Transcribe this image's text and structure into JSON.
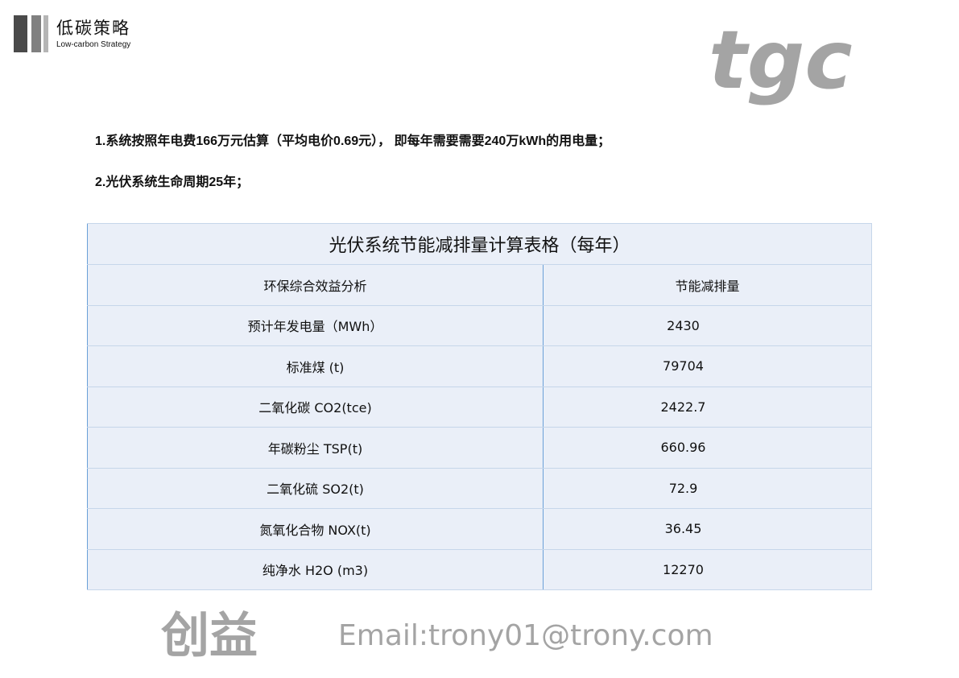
{
  "header": {
    "logo_cn": "低碳策略",
    "logo_en": "Low-carbon Strategy"
  },
  "notes": [
    "1.系统按照年电费166万元估算（平均电价0.69元）， 即每年需要需要240万kWh的用电量；",
    "2.光伏系统生命周期25年；"
  ],
  "table": {
    "title": "光伏系统节能减排量计算表格（每年）",
    "headers": [
      "环保综合效益分析",
      "节能减排量"
    ],
    "rows": [
      {
        "item": "预计年发电量（MWh）",
        "value": "2430"
      },
      {
        "item": "标准煤 (t)",
        "value": "79704"
      },
      {
        "item": "二氧化碳 CO2(tce)",
        "value": "2422.7"
      },
      {
        "item": "年碳粉尘 TSP(t)",
        "value": "660.96"
      },
      {
        "item": "二氧化硫 SO2(t)",
        "value": "72.9"
      },
      {
        "item": "氮氧化合物 NOX(t)",
        "value": "36.45"
      },
      {
        "item": "纯净水 H2O (m3)",
        "value": "12270"
      }
    ]
  },
  "watermark": {
    "cn": "创益",
    "logo": "tgc",
    "email": "Email:trony01@trony.com"
  }
}
